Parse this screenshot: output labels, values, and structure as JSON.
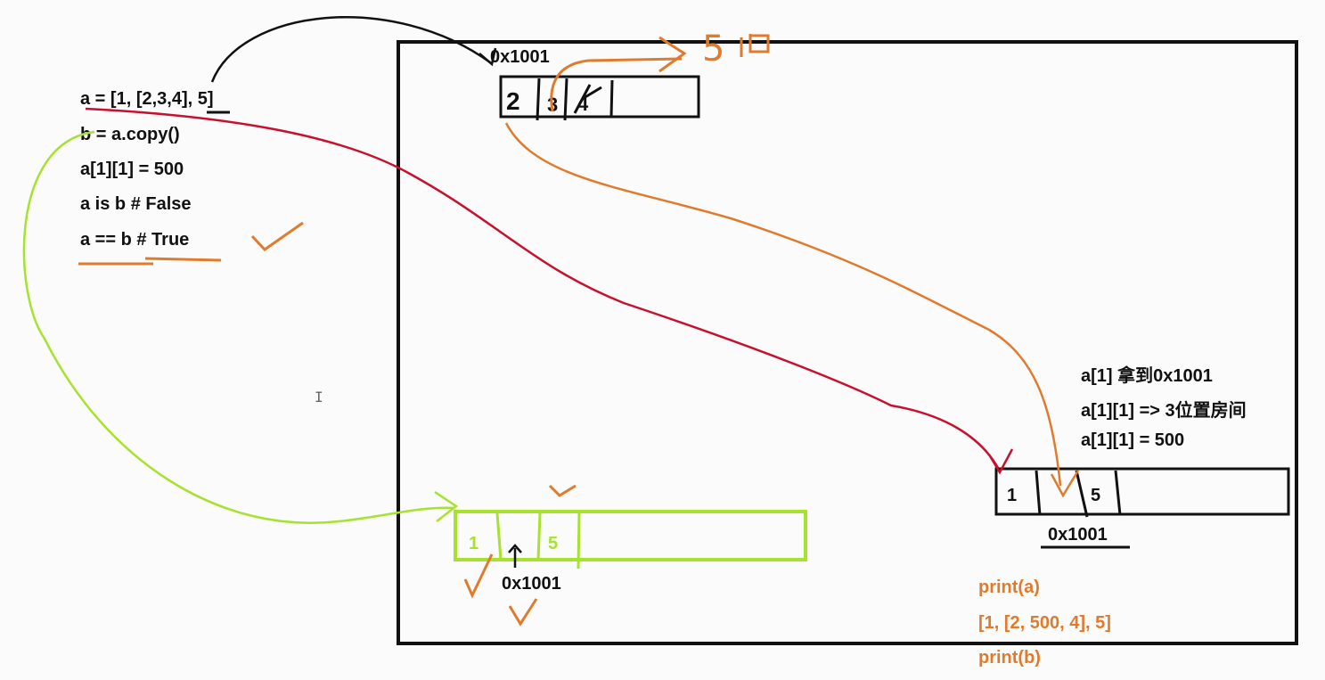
{
  "code": {
    "line1": "a = [1, [2,3,4], 5]",
    "line2": "b = a.copy()",
    "line3": "a[1][1] = 500",
    "line4": "a is b # False",
    "line5": "a == b # True"
  },
  "inner_list": {
    "address": "0x1001",
    "cells": [
      "2",
      "3",
      "4"
    ],
    "handwritten_value": "5"
  },
  "list_a": {
    "cells": [
      "1",
      "",
      "5"
    ],
    "address_label": "0x1001"
  },
  "list_b": {
    "cells": [
      "1",
      "",
      "5"
    ],
    "address_label": "0x1001"
  },
  "notes": {
    "n1": "a[1] 拿到0x1001",
    "n2": "a[1][1] => 3位置房间",
    "n3": "a[1][1] = 500"
  },
  "output": {
    "print_a": "print(a)",
    "result_a": "[1, [2, 500, 4], 5]",
    "print_b": "print(b)"
  },
  "colors": {
    "ink": "#111111",
    "red_arrow": "#c8102e",
    "orange": "#e07b2e",
    "green": "#a6e22e"
  }
}
